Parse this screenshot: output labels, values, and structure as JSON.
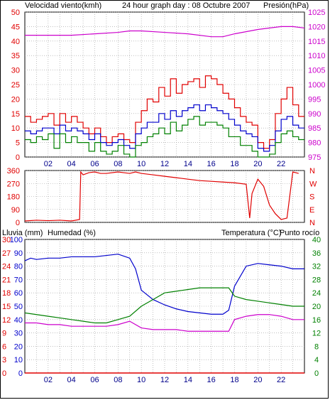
{
  "header": {
    "wind_label": "Velocidad viento(kmh)",
    "title": "24 hour graph day : 08 Octubre 2007",
    "pressure_label": "Presión(hPa)"
  },
  "middle": {
    "dir_letters": [
      "N",
      "W",
      "S",
      "E",
      "N"
    ]
  },
  "lower": {
    "rain_label": "Lluvia (mm)",
    "humidity_label": "Humedad (%)",
    "temp_label": "Temperatura (°C)",
    "dew_label": "Punto rocío"
  },
  "colors": {
    "wind": "#e00000",
    "wind_avg": "#0000cc",
    "wind_low": "#008000",
    "pressure": "#cc00cc",
    "direction": "#e00000",
    "humidity": "#0000cc",
    "temperature": "#008000",
    "dewpoint": "#cc00cc",
    "rain": "#e00000"
  },
  "chart_data": [
    {
      "type": "line",
      "title": "24 hour graph day : 08 Octubre 2007",
      "x_ticks": [
        "02",
        "04",
        "06",
        "08",
        "10",
        "12",
        "14",
        "16",
        "18",
        "20",
        "22"
      ],
      "xlim": [
        0,
        24
      ],
      "left_axis": {
        "label": "Velocidad viento(kmh)",
        "range": [
          0,
          50
        ],
        "ticks": [
          0,
          5,
          10,
          15,
          20,
          25,
          30,
          35,
          40,
          45,
          50
        ]
      },
      "right_axis": {
        "label": "Presión(hPa)",
        "range": [
          975,
          1025
        ],
        "ticks": [
          975,
          980,
          985,
          990,
          995,
          1000,
          1005,
          1010,
          1015,
          1020,
          1025
        ]
      },
      "series": [
        {
          "name": "Velocidad viento(kmh)",
          "axis": "left",
          "x": [
            0,
            0.5,
            1,
            1.5,
            2,
            2.5,
            3,
            3.5,
            4,
            4.5,
            5,
            5.5,
            6,
            6.5,
            7,
            7.5,
            8,
            8.5,
            9,
            9.5,
            10,
            10.5,
            11,
            11.5,
            12,
            12.5,
            13,
            13.5,
            14,
            14.5,
            15,
            15.5,
            16,
            16.5,
            17,
            17.5,
            18,
            18.5,
            19,
            19.5,
            20,
            20.5,
            21,
            21.5,
            22,
            22.5,
            23,
            23.5
          ],
          "y": [
            14,
            12,
            13,
            14,
            15,
            11,
            15,
            12,
            14,
            12,
            10,
            8,
            10,
            7,
            5,
            7,
            8,
            6,
            5,
            12,
            16,
            20,
            19,
            24,
            21,
            27,
            22,
            25,
            26,
            27,
            24,
            28,
            27,
            25,
            22,
            20,
            17,
            14,
            12,
            11,
            5,
            3,
            6,
            15,
            20,
            24,
            18,
            14
          ]
        },
        {
          "axis": "left",
          "x": [
            0,
            0.5,
            1,
            1.5,
            2,
            2.5,
            3,
            3.5,
            4,
            4.5,
            5,
            5.5,
            6,
            6.5,
            7,
            7.5,
            8,
            8.5,
            9,
            9.5,
            10,
            10.5,
            11,
            11.5,
            12,
            12.5,
            13,
            13.5,
            14,
            14.5,
            15,
            15.5,
            16,
            16.5,
            17,
            17.5,
            18,
            18.5,
            19,
            19.5,
            20,
            20.5,
            21,
            21.5,
            22,
            22.5,
            23,
            23.5
          ],
          "y": [
            9,
            8,
            9,
            10,
            10,
            8,
            11,
            9,
            10,
            9,
            8,
            6,
            8,
            5,
            4,
            5,
            6,
            4,
            3,
            8,
            10,
            12,
            12,
            15,
            13,
            16,
            14,
            16,
            17,
            18,
            16,
            18,
            17,
            16,
            15,
            13,
            11,
            9,
            8,
            7,
            3,
            2,
            4,
            9,
            13,
            14,
            11,
            10
          ]
        },
        {
          "axis": "left",
          "x": [
            0,
            0.5,
            1,
            1.5,
            2,
            2.5,
            3,
            3.5,
            4,
            4.5,
            5,
            5.5,
            6,
            6.5,
            7,
            7.5,
            8,
            8.5,
            9,
            9.5,
            10,
            10.5,
            11,
            11.5,
            12,
            12.5,
            13,
            13.5,
            14,
            14.5,
            15,
            15.5,
            16,
            16.5,
            17,
            17.5,
            18,
            18.5,
            19,
            19.5,
            20,
            20.5,
            21,
            21.5,
            22,
            22.5,
            23,
            23.5
          ],
          "y": [
            6,
            5,
            7,
            6,
            8,
            3,
            8,
            5,
            7,
            5,
            5,
            2,
            5,
            2,
            1,
            2,
            4,
            1,
            0,
            4,
            5,
            7,
            8,
            10,
            8,
            12,
            9,
            11,
            13,
            14,
            11,
            12,
            12,
            11,
            10,
            7,
            7,
            4,
            4,
            2,
            0,
            0,
            1,
            5,
            8,
            9,
            7,
            6
          ]
        },
        {
          "name": "Presión(hPa)",
          "axis": "right",
          "x": [
            0,
            2,
            4,
            6,
            8,
            9,
            10,
            12,
            14,
            16,
            17,
            18,
            20,
            22,
            23,
            24
          ],
          "y": [
            1017,
            1017,
            1017,
            1017.5,
            1018,
            1018.5,
            1018.5,
            1018,
            1017.5,
            1016.5,
            1016.5,
            1017.5,
            1019,
            1020,
            1020,
            1019.5
          ]
        }
      ]
    },
    {
      "type": "line",
      "x_ticks": [
        "02",
        "04",
        "06",
        "08",
        "10",
        "12",
        "14",
        "16",
        "18",
        "20",
        "22"
      ],
      "left_axis": {
        "range": [
          0,
          360
        ],
        "ticks": [
          0,
          90,
          180,
          270,
          360
        ]
      },
      "right_axis": {
        "ticks": [
          "N",
          "W",
          "S",
          "E",
          "N"
        ]
      },
      "series": [
        {
          "axis": "left",
          "x": [
            0,
            1,
            2,
            3,
            4,
            4.7,
            4.8,
            5,
            5.5,
            6,
            6.5,
            7,
            8,
            8.5,
            9,
            9.5,
            10,
            11,
            12,
            13,
            14,
            15,
            16,
            17,
            18,
            19,
            19.3,
            19.5,
            20,
            20.5,
            21,
            21.5,
            22,
            22.5,
            23,
            23.5
          ],
          "y": [
            10,
            15,
            12,
            15,
            10,
            20,
            350,
            330,
            345,
            350,
            340,
            340,
            350,
            345,
            340,
            350,
            340,
            330,
            320,
            310,
            300,
            290,
            285,
            280,
            275,
            265,
            30,
            200,
            300,
            250,
            120,
            60,
            20,
            30,
            350,
            340
          ]
        }
      ]
    },
    {
      "type": "line",
      "x_ticks": [
        "02",
        "04",
        "06",
        "08",
        "10",
        "12",
        "14",
        "16",
        "18",
        "20",
        "22"
      ],
      "left_axis_inner": {
        "label": "Humedad (%)",
        "range": [
          0,
          100
        ],
        "ticks": [
          0,
          10,
          20,
          30,
          40,
          50,
          60,
          70,
          80,
          90,
          100
        ]
      },
      "left_axis_outer": {
        "label": "Lluvia (mm)",
        "range": [
          0,
          30
        ],
        "ticks": [
          0,
          3,
          6,
          9,
          12,
          15,
          18,
          21,
          24,
          27,
          30
        ]
      },
      "right_axis": {
        "label": "Temperatura (°C)",
        "range": [
          0,
          40
        ],
        "ticks": [
          0,
          4,
          8,
          12,
          16,
          20,
          24,
          28,
          32,
          36,
          40
        ]
      },
      "series": [
        {
          "name": "Humedad (%)",
          "axis": "left_inner",
          "x": [
            0,
            0.5,
            1,
            2,
            3,
            4,
            5,
            6,
            7,
            8,
            9,
            9.5,
            10,
            11,
            12,
            13,
            14,
            15,
            16,
            17,
            17.5,
            18,
            19,
            20,
            21,
            22,
            23,
            24
          ],
          "y": [
            84,
            86,
            85,
            86,
            86,
            87,
            87,
            87,
            88,
            89,
            86,
            78,
            62,
            55,
            51,
            48,
            46,
            45,
            44,
            44,
            47,
            65,
            80,
            82,
            81,
            80,
            78,
            78
          ]
        },
        {
          "name": "Temperatura (°C)",
          "axis": "right",
          "x": [
            0,
            1,
            2,
            3,
            4,
            5,
            6,
            7,
            8,
            9,
            10,
            11,
            12,
            13,
            14,
            15,
            16,
            17,
            17.5,
            18,
            19,
            20,
            21,
            22,
            23,
            24
          ],
          "y": [
            18,
            17.5,
            17,
            16.5,
            16,
            15.5,
            15,
            15,
            16,
            17,
            20,
            22,
            24,
            24.5,
            25,
            25.5,
            25.5,
            25.5,
            25.5,
            23,
            22,
            21.5,
            21,
            20.5,
            20,
            20
          ]
        },
        {
          "name": "Punto rocío",
          "axis": "right",
          "x": [
            0,
            1,
            2,
            3,
            4,
            5,
            6,
            7,
            8,
            9,
            10,
            11,
            12,
            13,
            14,
            15,
            16,
            17,
            17.5,
            18,
            19,
            20,
            21,
            22,
            23,
            24
          ],
          "y": [
            15,
            15,
            14.5,
            14.5,
            14,
            14,
            14,
            14,
            14.5,
            15.5,
            13.5,
            13,
            13,
            13,
            12.5,
            12.5,
            12.5,
            12.5,
            12.5,
            16,
            17,
            17.5,
            17.5,
            17,
            16,
            16
          ]
        },
        {
          "name": "Lluvia (mm)",
          "axis": "left_outer",
          "x": [
            0,
            24
          ],
          "y": [
            0,
            0
          ]
        }
      ]
    }
  ]
}
